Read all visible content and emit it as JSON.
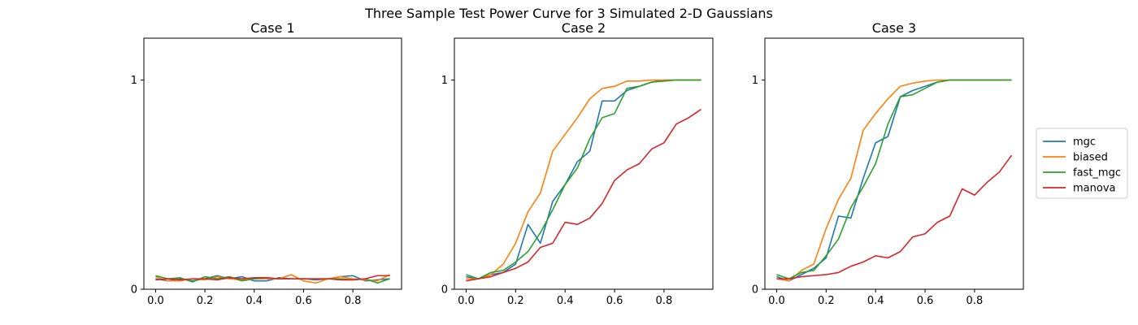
{
  "figure": {
    "suptitle": "Three Sample Test Power Curve for 3 Simulated 2-D Gaussians"
  },
  "legend": {
    "placement": "center-right",
    "entries": [
      {
        "name": "mgc",
        "color": "#1f77b4"
      },
      {
        "name": "biased",
        "color": "#ff7f0e"
      },
      {
        "name": "fast_mgc",
        "color": "#2ca02c"
      },
      {
        "name": "manova",
        "color": "#d62728"
      }
    ]
  },
  "chart_data": [
    {
      "type": "line",
      "title": "Case 1",
      "xlim": [
        -0.0475,
        0.9975
      ],
      "ylim": [
        0,
        1.2
      ],
      "xticks": [
        0.0,
        0.2,
        0.4,
        0.6,
        0.8
      ],
      "xtick_labels": [
        "0.0",
        "0.2",
        "0.4",
        "0.6",
        "0.8"
      ],
      "yticks": [
        0,
        1
      ],
      "ytick_labels": [
        "0",
        "1"
      ],
      "grid": false,
      "x": [
        0.0,
        0.05,
        0.1,
        0.15,
        0.2,
        0.25,
        0.3,
        0.35,
        0.4,
        0.45,
        0.5,
        0.55,
        0.6,
        0.65,
        0.7,
        0.75,
        0.8,
        0.85,
        0.9,
        0.95
      ],
      "series": [
        {
          "name": "mgc",
          "color": "#1f77b4",
          "values": [
            0.05,
            0.04,
            0.05,
            0.04,
            0.05,
            0.065,
            0.05,
            0.06,
            0.04,
            0.04,
            0.055,
            0.05,
            0.05,
            0.045,
            0.05,
            0.06,
            0.065,
            0.04,
            0.045,
            0.05
          ]
        },
        {
          "name": "biased",
          "color": "#ff7f0e",
          "values": [
            0.06,
            0.04,
            0.04,
            0.05,
            0.045,
            0.06,
            0.05,
            0.045,
            0.05,
            0.05,
            0.05,
            0.07,
            0.04,
            0.03,
            0.05,
            0.06,
            0.05,
            0.045,
            0.04,
            0.07
          ]
        },
        {
          "name": "fast_mgc",
          "color": "#2ca02c",
          "values": [
            0.065,
            0.05,
            0.055,
            0.035,
            0.06,
            0.05,
            0.06,
            0.04,
            0.05,
            0.055,
            0.05,
            0.05,
            0.05,
            0.05,
            0.05,
            0.05,
            0.045,
            0.05,
            0.03,
            0.05
          ]
        },
        {
          "name": "manova",
          "color": "#d62728",
          "values": [
            0.045,
            0.05,
            0.045,
            0.05,
            0.05,
            0.045,
            0.055,
            0.05,
            0.055,
            0.055,
            0.05,
            0.05,
            0.05,
            0.05,
            0.05,
            0.045,
            0.045,
            0.05,
            0.065,
            0.065
          ]
        }
      ]
    },
    {
      "type": "line",
      "title": "Case 2",
      "xlim": [
        -0.0475,
        0.9975
      ],
      "ylim": [
        0,
        1.2
      ],
      "xticks": [
        0.0,
        0.2,
        0.4,
        0.6,
        0.8
      ],
      "xtick_labels": [
        "0.0",
        "0.2",
        "0.4",
        "0.6",
        "0.8"
      ],
      "yticks": [
        0,
        1
      ],
      "ytick_labels": [
        "0",
        "1"
      ],
      "grid": false,
      "x": [
        0.0,
        0.05,
        0.1,
        0.15,
        0.2,
        0.25,
        0.3,
        0.35,
        0.4,
        0.45,
        0.5,
        0.55,
        0.6,
        0.65,
        0.7,
        0.75,
        0.8,
        0.85,
        0.9,
        0.95
      ],
      "series": [
        {
          "name": "mgc",
          "color": "#1f77b4",
          "values": [
            0.06,
            0.05,
            0.07,
            0.08,
            0.12,
            0.31,
            0.22,
            0.42,
            0.5,
            0.61,
            0.66,
            0.9,
            0.9,
            0.95,
            0.97,
            0.99,
            1.0,
            1.0,
            1.0,
            1.0
          ]
        },
        {
          "name": "biased",
          "color": "#ff7f0e",
          "values": [
            0.05,
            0.05,
            0.07,
            0.12,
            0.22,
            0.37,
            0.46,
            0.66,
            0.74,
            0.82,
            0.91,
            0.96,
            0.97,
            0.995,
            0.995,
            1.0,
            1.0,
            1.0,
            1.0,
            1.0
          ]
        },
        {
          "name": "fast_mgc",
          "color": "#2ca02c",
          "values": [
            0.07,
            0.05,
            0.08,
            0.09,
            0.13,
            0.18,
            0.27,
            0.38,
            0.5,
            0.58,
            0.72,
            0.82,
            0.84,
            0.96,
            0.97,
            0.99,
            0.995,
            1.0,
            1.0,
            1.0
          ]
        },
        {
          "name": "manova",
          "color": "#d62728",
          "values": [
            0.04,
            0.05,
            0.06,
            0.08,
            0.1,
            0.13,
            0.2,
            0.22,
            0.32,
            0.31,
            0.34,
            0.41,
            0.52,
            0.57,
            0.6,
            0.67,
            0.7,
            0.79,
            0.82,
            0.86
          ]
        }
      ]
    },
    {
      "type": "line",
      "title": "Case 3",
      "xlim": [
        -0.0475,
        0.9975
      ],
      "ylim": [
        0,
        1.2
      ],
      "xticks": [
        0.0,
        0.2,
        0.4,
        0.6,
        0.8
      ],
      "xtick_labels": [
        "0.0",
        "0.2",
        "0.4",
        "0.6",
        "0.8"
      ],
      "yticks": [
        0,
        1
      ],
      "ytick_labels": [
        "0",
        "1"
      ],
      "grid": false,
      "x": [
        0.0,
        0.05,
        0.1,
        0.15,
        0.2,
        0.25,
        0.3,
        0.35,
        0.4,
        0.45,
        0.5,
        0.55,
        0.6,
        0.65,
        0.7,
        0.75,
        0.8,
        0.85,
        0.9,
        0.95
      ],
      "series": [
        {
          "name": "mgc",
          "color": "#1f77b4",
          "values": [
            0.06,
            0.04,
            0.07,
            0.1,
            0.15,
            0.35,
            0.34,
            0.53,
            0.7,
            0.73,
            0.92,
            0.95,
            0.97,
            0.99,
            1.0,
            1.0,
            1.0,
            1.0,
            1.0,
            1.0
          ]
        },
        {
          "name": "biased",
          "color": "#ff7f0e",
          "values": [
            0.05,
            0.04,
            0.09,
            0.12,
            0.29,
            0.43,
            0.53,
            0.76,
            0.84,
            0.91,
            0.97,
            0.985,
            0.995,
            1.0,
            1.0,
            1.0,
            1.0,
            1.0,
            1.0,
            1.0
          ]
        },
        {
          "name": "fast_mgc",
          "color": "#2ca02c",
          "values": [
            0.07,
            0.05,
            0.08,
            0.09,
            0.16,
            0.24,
            0.39,
            0.49,
            0.6,
            0.79,
            0.92,
            0.93,
            0.96,
            0.99,
            1.0,
            1.0,
            1.0,
            1.0,
            1.0,
            1.0
          ]
        },
        {
          "name": "manova",
          "color": "#d62728",
          "values": [
            0.05,
            0.05,
            0.06,
            0.065,
            0.07,
            0.08,
            0.11,
            0.13,
            0.16,
            0.15,
            0.18,
            0.25,
            0.265,
            0.32,
            0.35,
            0.48,
            0.45,
            0.51,
            0.56,
            0.64
          ]
        }
      ]
    }
  ]
}
